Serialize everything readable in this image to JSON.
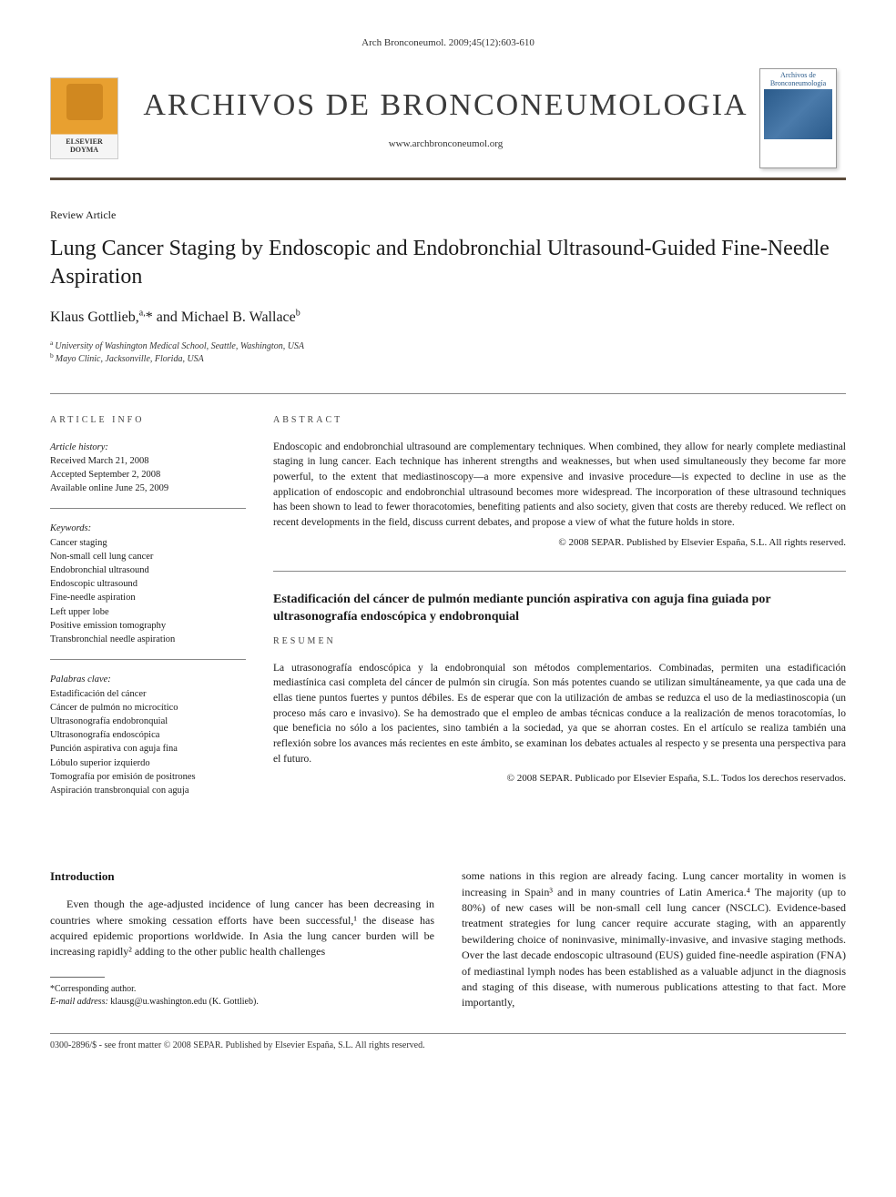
{
  "running_head": "Arch Bronconeumol. 2009;45(12):603-610",
  "journal": {
    "title": "ARCHIVOS DE BRONCONEUMOLOGIA",
    "url": "www.archbronconeumol.org",
    "cover_label": "Archivos de Bronconeumología"
  },
  "publisher_logo_text": "ELSEVIER DOYMA",
  "article_type": "Review Article",
  "title": "Lung Cancer Staging by Endoscopic and Endobronchial Ultrasound-Guided Fine-Needle Aspiration",
  "authors_html": "Klaus Gottlieb,<sup>a,</sup>* and Michael B. Wallace<sup>b</sup>",
  "affiliations": [
    {
      "marker": "a",
      "text": "University of Washington Medical School, Seattle, Washington, USA"
    },
    {
      "marker": "b",
      "text": "Mayo Clinic, Jacksonville, Florida, USA"
    }
  ],
  "info": {
    "heading": "ARTICLE INFO",
    "history_label": "Article history:",
    "history": [
      "Received March 21, 2008",
      "Accepted September 2, 2008",
      "Available online June 25, 2009"
    ],
    "keywords_label": "Keywords:",
    "keywords": [
      "Cancer staging",
      "Non-small cell lung cancer",
      "Endobronchial ultrasound",
      "Endoscopic ultrasound",
      "Fine-needle aspiration",
      "Left upper lobe",
      "Positive emission tomography",
      "Transbronchial needle aspiration"
    ],
    "palabras_label": "Palabras clave:",
    "palabras": [
      "Estadificación del cáncer",
      "Cáncer de pulmón no microcítico",
      "Ultrasonografía endobronquial",
      "Ultrasonografía endoscópica",
      "Punción aspirativa con aguja fina",
      "Lóbulo superior izquierdo",
      "Tomografía por emisión de positrones",
      "Aspiración transbronquial con aguja"
    ]
  },
  "abstract": {
    "heading": "ABSTRACT",
    "text": "Endoscopic and endobronchial ultrasound are complementary techniques. When combined, they allow for nearly complete mediastinal staging in lung cancer. Each technique has inherent strengths and weaknesses, but when used simultaneously they become far more powerful, to the extent that mediastinoscopy—a more expensive and invasive procedure—is expected to decline in use as the application of endoscopic and endobronchial ultrasound becomes more widespread. The incorporation of these ultrasound techniques has been shown to lead to fewer thoracotomies, benefiting patients and also society, given that costs are thereby reduced. We reflect on recent developments in the field, discuss current debates, and propose a view of what the future holds in store.",
    "copyright": "© 2008 SEPAR. Published by Elsevier España, S.L. All rights reserved."
  },
  "resumen": {
    "title": "Estadificación del cáncer de pulmón mediante punción aspirativa con aguja fina guiada por ultrasonografía endoscópica y endobronquial",
    "heading": "RESUMEN",
    "text": "La utrasonografía endoscópica y la endobronquial son métodos complementarios. Combinadas, permiten una estadificación mediastínica casi completa del cáncer de pulmón sin cirugía. Son más potentes cuando se utilizan simultáneamente, ya que cada una de ellas tiene puntos fuertes y puntos débiles. Es de esperar que con la utilización de ambas se reduzca el uso de la mediastinoscopia (un proceso más caro e invasivo). Se ha demostrado que el empleo de ambas técnicas conduce a la realización de menos toracotomías, lo que beneficia no sólo a los pacientes, sino también a la sociedad, ya que se ahorran costes. En el artículo se realiza también una reflexión sobre los avances más recientes en este ámbito, se examinan los debates actuales al respecto y se presenta una perspectiva para el futuro.",
    "copyright": "© 2008 SEPAR. Publicado por Elsevier España, S.L. Todos los derechos reservados."
  },
  "body": {
    "intro_heading": "Introduction",
    "col1": "Even though the age-adjusted incidence of lung cancer has been decreasing in countries where smoking cessation efforts have been successful,¹ the disease has acquired epidemic proportions worldwide. In Asia the lung cancer burden will be increasing rapidly² adding to the other public health challenges",
    "col2": "some nations in this region are already facing. Lung cancer mortality in women is increasing in Spain³ and in many countries of Latin America.⁴ The majority (up to 80%) of new cases will be non-small cell lung cancer (NSCLC). Evidence-based treatment strategies for lung cancer require accurate staging, with an apparently bewildering choice of noninvasive, minimally-invasive, and invasive staging methods. Over the last decade endoscopic ultrasound (EUS) guided fine-needle aspiration (FNA) of mediastinal lymph nodes has been established as a valuable adjunct in the diagnosis and staging of this disease, with numerous publications attesting to that fact. More importantly,"
  },
  "corresponding": {
    "label": "*Corresponding author.",
    "email_label": "E-mail address:",
    "email": "klausg@u.washington.edu (K. Gottlieb)."
  },
  "footer": "0300-2896/$ - see front matter © 2008 SEPAR. Published by Elsevier España, S.L. All rights reserved.",
  "colors": {
    "rule": "#5a4a3a",
    "text": "#1a1a1a",
    "logo_orange": "#e8a030",
    "cover_blue": "#2a5a8a"
  }
}
